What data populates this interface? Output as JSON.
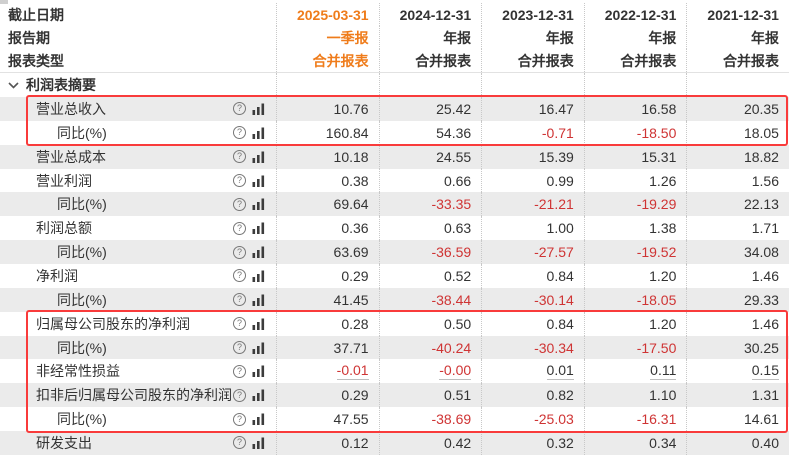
{
  "colors": {
    "accent_orange": "#ef7c1b",
    "negative_red": "#cf3434",
    "text_dark": "#333333",
    "stripe_gray": "#ebebeb",
    "highlight_box_red": "#f93b3b"
  },
  "header": {
    "rows": [
      {
        "label": "截止日期",
        "values": [
          "2025-03-31",
          "2024-12-31",
          "2023-12-31",
          "2022-12-31",
          "2021-12-31"
        ]
      },
      {
        "label": "报告期",
        "values": [
          "一季报",
          "年报",
          "年报",
          "年报",
          "年报"
        ]
      },
      {
        "label": "报表类型",
        "values": [
          "合并报表",
          "合并报表",
          "合并报表",
          "合并报表",
          "合并报表"
        ]
      }
    ]
  },
  "section": {
    "title": "利润表摘要"
  },
  "icons": {
    "help": "?",
    "bar_chart": "bar-chart-icon",
    "chevron": "chevron-down-icon"
  },
  "rows": [
    {
      "label": "营业总收入",
      "indent": false,
      "help": false,
      "underline": false,
      "values": [
        "10.76",
        "25.42",
        "16.47",
        "16.58",
        "20.35"
      ]
    },
    {
      "label": "同比(%)",
      "indent": true,
      "help": true,
      "underline": false,
      "values": [
        "160.84",
        "54.36",
        "-0.71",
        "-18.50",
        "18.05"
      ]
    },
    {
      "label": "营业总成本",
      "indent": false,
      "help": false,
      "underline": false,
      "values": [
        "10.18",
        "24.55",
        "15.39",
        "15.31",
        "18.82"
      ]
    },
    {
      "label": "营业利润",
      "indent": false,
      "help": false,
      "underline": false,
      "values": [
        "0.38",
        "0.66",
        "0.99",
        "1.26",
        "1.56"
      ]
    },
    {
      "label": "同比(%)",
      "indent": true,
      "help": false,
      "underline": false,
      "values": [
        "69.64",
        "-33.35",
        "-21.21",
        "-19.29",
        "22.13"
      ]
    },
    {
      "label": "利润总额",
      "indent": false,
      "help": false,
      "underline": false,
      "values": [
        "0.36",
        "0.63",
        "1.00",
        "1.38",
        "1.71"
      ]
    },
    {
      "label": "同比(%)",
      "indent": true,
      "help": false,
      "underline": false,
      "values": [
        "63.69",
        "-36.59",
        "-27.57",
        "-19.52",
        "34.08"
      ]
    },
    {
      "label": "净利润",
      "indent": false,
      "help": false,
      "underline": false,
      "values": [
        "0.29",
        "0.52",
        "0.84",
        "1.20",
        "1.46"
      ]
    },
    {
      "label": "同比(%)",
      "indent": true,
      "help": false,
      "underline": false,
      "values": [
        "41.45",
        "-38.44",
        "-30.14",
        "-18.05",
        "29.33"
      ]
    },
    {
      "label": "归属母公司股东的净利润",
      "indent": false,
      "help": false,
      "underline": false,
      "values": [
        "0.28",
        "0.50",
        "0.84",
        "1.20",
        "1.46"
      ]
    },
    {
      "label": "同比(%)",
      "indent": true,
      "help": false,
      "underline": false,
      "values": [
        "37.71",
        "-40.24",
        "-30.34",
        "-17.50",
        "30.25"
      ]
    },
    {
      "label": "非经常性损益",
      "indent": false,
      "help": false,
      "underline": true,
      "values": [
        "-0.01",
        "-0.00",
        "0.01",
        "0.11",
        "0.15"
      ]
    },
    {
      "label": "扣非后归属母公司股东的净利润",
      "indent": false,
      "help": false,
      "underline": false,
      "values": [
        "0.29",
        "0.51",
        "0.82",
        "1.10",
        "1.31"
      ]
    },
    {
      "label": "同比(%)",
      "indent": true,
      "help": false,
      "underline": false,
      "values": [
        "47.55",
        "-38.69",
        "-25.03",
        "-16.31",
        "14.61"
      ]
    },
    {
      "label": "研发支出",
      "indent": false,
      "help": true,
      "underline": false,
      "values": [
        "0.12",
        "0.42",
        "0.32",
        "0.34",
        "0.40"
      ]
    }
  ],
  "highlights": [
    {
      "name": "revenue-rows",
      "first_row": 0,
      "row_count": 2
    },
    {
      "name": "net-profit-rows",
      "first_row": 9,
      "row_count": 5
    }
  ]
}
